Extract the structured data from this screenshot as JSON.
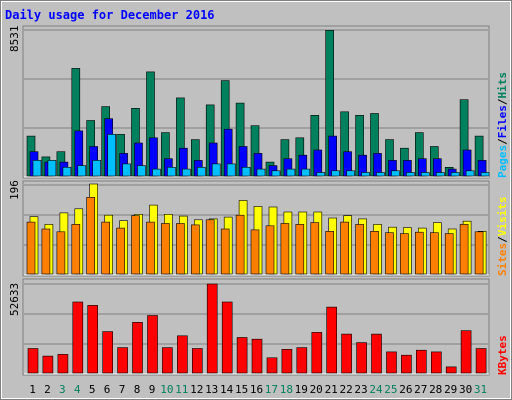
{
  "chart_data": {
    "type": "bar",
    "title": "Daily usage for December 2016",
    "days": [
      "1",
      "2",
      "3",
      "4",
      "5",
      "6",
      "7",
      "8",
      "9",
      "10",
      "11",
      "12",
      "13",
      "14",
      "15",
      "16",
      "17",
      "18",
      "19",
      "20",
      "21",
      "22",
      "23",
      "24",
      "25",
      "26",
      "27",
      "28",
      "29",
      "30",
      "31"
    ],
    "weekend_color": "#00805c",
    "weekday_color": "#000000",
    "top_panel": {
      "max_label": "8531",
      "max": 8531,
      "series": [
        {
          "name": "Hits",
          "color": "#00805c",
          "values": [
            2300,
            1100,
            1400,
            6200,
            3200,
            4000,
            2400,
            3900,
            6000,
            2500,
            4500,
            2100,
            4100,
            5500,
            4200,
            2900,
            800,
            2100,
            2200,
            3500,
            8400,
            3700,
            3500,
            3600,
            2100,
            1600,
            2500,
            1700,
            500,
            4400,
            2300
          ]
        },
        {
          "name": "Files",
          "color": "#0000ff",
          "values": [
            1400,
            800,
            800,
            2600,
            1700,
            3300,
            1300,
            1900,
            2200,
            1000,
            1600,
            900,
            1900,
            2700,
            1700,
            1300,
            600,
            1000,
            1200,
            1500,
            2300,
            1400,
            1200,
            1300,
            900,
            900,
            1000,
            1000,
            400,
            1500,
            900
          ]
        },
        {
          "name": "Pages",
          "color": "#00bfff",
          "values": [
            900,
            900,
            500,
            600,
            900,
            2400,
            700,
            600,
            400,
            500,
            400,
            500,
            700,
            700,
            500,
            400,
            300,
            400,
            400,
            200,
            300,
            300,
            200,
            200,
            300,
            200,
            200,
            200,
            200,
            300,
            200
          ]
        }
      ]
    },
    "mid_panel": {
      "max_label": "196",
      "max": 196,
      "series": [
        {
          "name": "Visits",
          "color": "#ffff00",
          "values": [
            125,
            108,
            133,
            142,
            196,
            128,
            116,
            130,
            150,
            130,
            126,
            118,
            120,
            124,
            160,
            147,
            146,
            135,
            135,
            135,
            122,
            127,
            120,
            108,
            102,
            101,
            100,
            112,
            98,
            115,
            93
          ]
        },
        {
          "name": "Sites",
          "color": "#ff8000",
          "values": [
            113,
            98,
            92,
            108,
            167,
            113,
            100,
            127,
            113,
            110,
            110,
            107,
            118,
            98,
            128,
            96,
            105,
            110,
            108,
            112,
            93,
            113,
            108,
            93,
            90,
            88,
            91,
            90,
            88,
            108,
            92
          ]
        }
      ]
    },
    "bottom_panel": {
      "max_label": "52633",
      "max": 52633,
      "series": [
        {
          "name": "KBytes",
          "color": "#ff0000",
          "values": [
            14500,
            10000,
            11000,
            42000,
            40000,
            24500,
            15000,
            30000,
            34000,
            15000,
            22000,
            14500,
            52633,
            42000,
            21000,
            20000,
            9000,
            14000,
            15000,
            24000,
            39000,
            23000,
            18000,
            23000,
            12500,
            10500,
            13500,
            12500,
            3600,
            25000,
            14500
          ]
        }
      ]
    },
    "right_labels": {
      "top": [
        "Pages",
        "Files",
        "Hits"
      ],
      "mid": [
        "Sites",
        "Visits"
      ],
      "bottom": [
        "KBytes"
      ],
      "separator": "/"
    }
  }
}
